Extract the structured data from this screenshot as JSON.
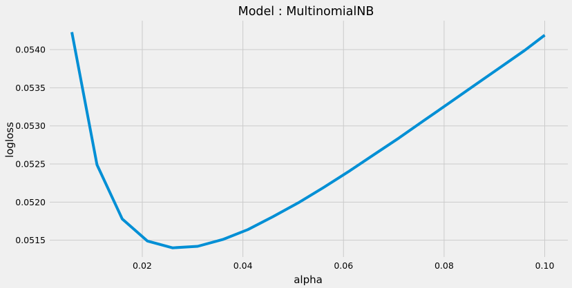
{
  "chart_data": {
    "type": "line",
    "title": "Model : MultinomialNB",
    "xlabel": "alpha",
    "ylabel": "logloss",
    "xlim": [
      0.0016,
      0.1046
    ],
    "ylim": [
      0.05128,
      0.05438
    ],
    "x_ticks": [
      0.02,
      0.04,
      0.06,
      0.08,
      0.1
    ],
    "x_tick_labels": [
      "0.02",
      "0.04",
      "0.06",
      "0.08",
      "0.10"
    ],
    "y_ticks": [
      0.0515,
      0.052,
      0.0525,
      0.053,
      0.0535,
      0.054
    ],
    "y_tick_labels": [
      "0.0515",
      "0.0520",
      "0.0525",
      "0.0530",
      "0.0535",
      "0.0540"
    ],
    "grid": true,
    "style": "fivethirtyeight",
    "series": [
      {
        "color": "#008fd5",
        "x": [
          0.006,
          0.011,
          0.016,
          0.021,
          0.026,
          0.031,
          0.036,
          0.041,
          0.046,
          0.051,
          0.056,
          0.061,
          0.066,
          0.071,
          0.076,
          0.081,
          0.086,
          0.091,
          0.096,
          0.1
        ],
        "y": [
          0.05423,
          0.05249,
          0.05178,
          0.05149,
          0.0514,
          0.05142,
          0.05151,
          0.05164,
          0.05181,
          0.05199,
          0.05219,
          0.0524,
          0.05262,
          0.05284,
          0.05307,
          0.0533,
          0.05353,
          0.05376,
          0.05399,
          0.05419
        ]
      }
    ]
  }
}
